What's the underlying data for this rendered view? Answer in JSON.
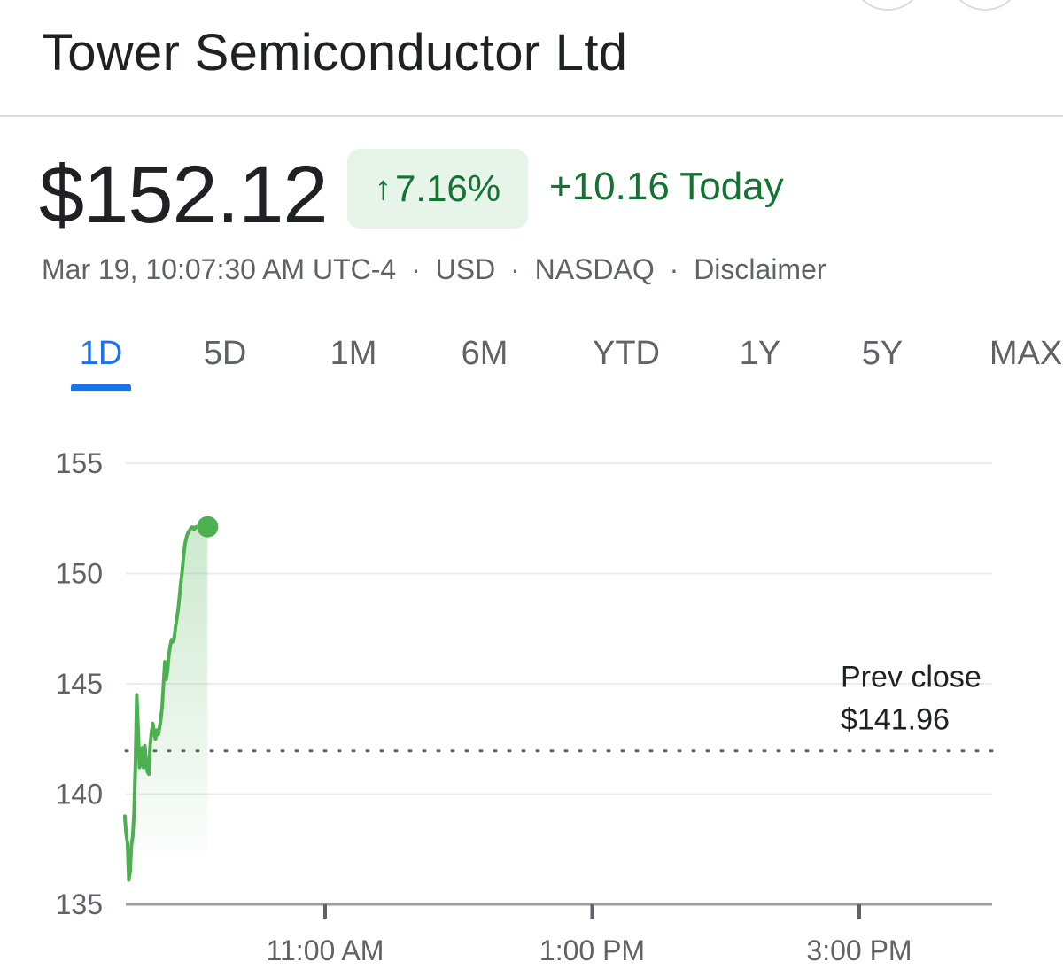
{
  "header": {
    "title": "Tower Semiconductor Ltd"
  },
  "quote": {
    "price": "$152.12",
    "percent_change": "7.16%",
    "percent_arrow_icon": "arrow-up-icon",
    "change_today": "+10.16 Today",
    "timestamp": "Mar 19, 10:07:30 AM UTC-4",
    "currency": "USD",
    "exchange": "NASDAQ",
    "disclaimer": "Disclaimer",
    "separator": "·"
  },
  "colors": {
    "positive": "#137333",
    "positive_bg": "#e6f4ea",
    "line": "#4caf50",
    "active_tab": "#1a73e8"
  },
  "tabs": [
    {
      "label": "1D",
      "active": true
    },
    {
      "label": "5D",
      "active": false
    },
    {
      "label": "1M",
      "active": false
    },
    {
      "label": "6M",
      "active": false
    },
    {
      "label": "YTD",
      "active": false
    },
    {
      "label": "1Y",
      "active": false
    },
    {
      "label": "5Y",
      "active": false
    },
    {
      "label": "MAX",
      "active": false
    }
  ],
  "chart_data": {
    "type": "line",
    "x_unit": "time of day",
    "x_ticks": [
      {
        "label": "11:00 AM",
        "hour": 11
      },
      {
        "label": "1:00 PM",
        "hour": 13
      },
      {
        "label": "3:00 PM",
        "hour": 15
      }
    ],
    "x_range_hours": [
      9.5,
      16
    ],
    "y_ticks": [
      155,
      150,
      145,
      140,
      135
    ],
    "ylim": [
      135,
      155
    ],
    "grid": true,
    "prev_close": {
      "label": "Prev close",
      "value_label": "$141.96",
      "value": 141.96
    },
    "series": [
      {
        "x": [
          9.5,
          9.51,
          9.52,
          9.53,
          9.54,
          9.55,
          9.56,
          9.57,
          9.58,
          9.59,
          9.6,
          9.61,
          9.62,
          9.63,
          9.64,
          9.65,
          9.66,
          9.67,
          9.68,
          9.69,
          9.7,
          9.71,
          9.72,
          9.73,
          9.74,
          9.75,
          9.76,
          9.77,
          9.78,
          9.79,
          9.8,
          9.81,
          9.82,
          9.83,
          9.84,
          9.85,
          9.86,
          9.87,
          9.88,
          9.89,
          9.9,
          9.91,
          9.92,
          9.93,
          9.94,
          9.95,
          9.96,
          9.97,
          9.98,
          9.99,
          10.0,
          10.01,
          10.02,
          10.03,
          10.04,
          10.05,
          10.06,
          10.07,
          10.08,
          10.09,
          10.1,
          10.11,
          10.12
        ],
        "y": [
          139.0,
          138.2,
          137.8,
          136.1,
          136.5,
          137.7,
          138.1,
          139.2,
          141.4,
          144.5,
          143.0,
          141.2,
          141.4,
          142.1,
          141.2,
          142.2,
          141.5,
          141.0,
          140.9,
          142.2,
          142.8,
          143.2,
          142.8,
          142.5,
          142.9,
          142.7,
          143.0,
          143.4,
          144.0,
          145.0,
          146.0,
          145.2,
          145.6,
          146.3,
          146.7,
          147.0,
          146.9,
          147.1,
          147.6,
          148.0,
          148.4,
          149.0,
          149.6,
          150.1,
          150.8,
          151.3,
          151.6,
          151.8,
          151.9,
          152.0,
          152.1,
          152.1,
          152.0,
          152.1,
          152.12,
          152.1,
          152.12,
          152.12,
          152.12,
          152.12,
          152.12,
          152.12,
          152.12
        ]
      }
    ],
    "last_value": 152.12
  }
}
